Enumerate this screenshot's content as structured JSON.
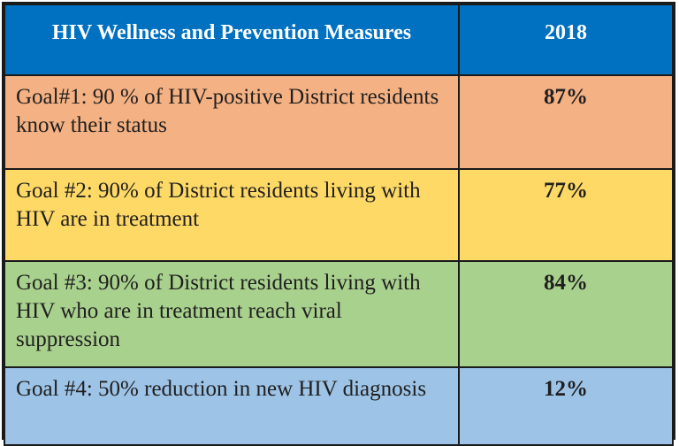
{
  "table": {
    "header": {
      "measure": "HIV Wellness and Prevention Measures",
      "year": "2018"
    },
    "colors": {
      "header": "#0070c0",
      "goal1": "#f4b183",
      "goal2": "#ffd966",
      "goal3": "#a9d18e",
      "goal4": "#9dc3e6"
    },
    "rows": [
      {
        "goal": "Goal#1: 90 % of HIV-positive District residents know their status",
        "value": "87%"
      },
      {
        "goal": "Goal #2: 90% of District residents living with HIV are in treatment",
        "value": "77%"
      },
      {
        "goal": "Goal #3: 90% of District residents living with HIV who are in treatment reach viral suppression",
        "value": "84%"
      },
      {
        "goal": "Goal #4: 50% reduction in new HIV diagnosis",
        "value": "12%"
      }
    ]
  }
}
